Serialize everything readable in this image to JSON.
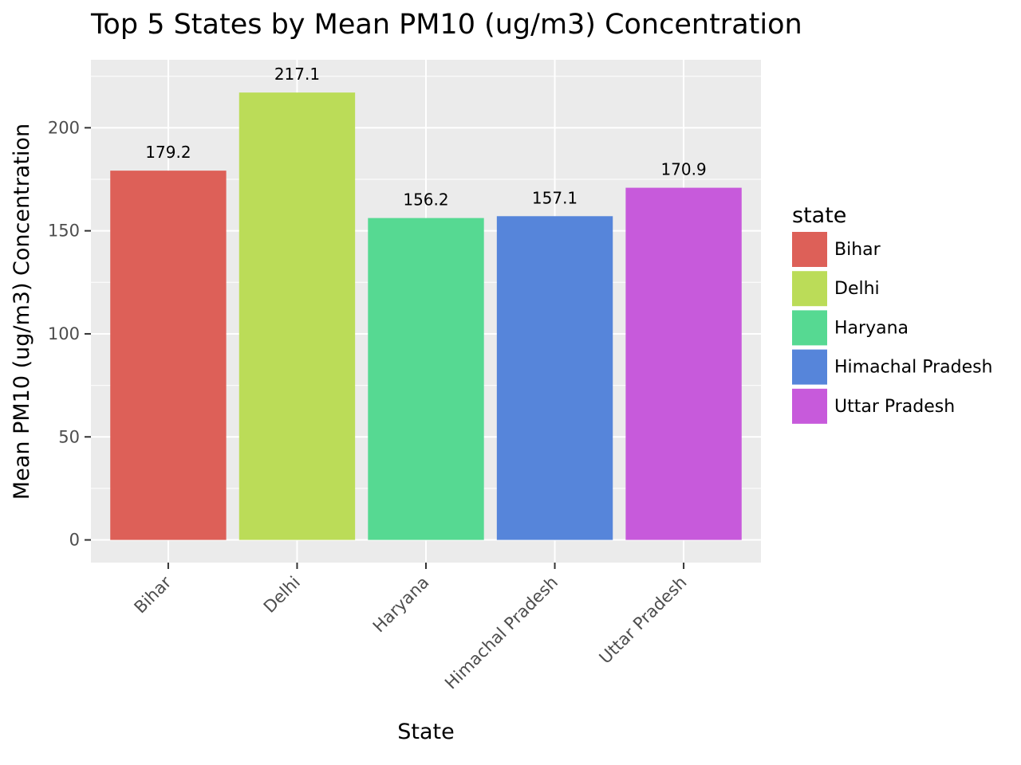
{
  "chart_data": {
    "type": "bar",
    "title": "Top 5 States by Mean PM10 (ug/m3) Concentration",
    "xlabel": "State",
    "ylabel": "Mean PM10 (ug/m3) Concentration",
    "categories": [
      "Bihar",
      "Delhi",
      "Haryana",
      "Himachal Pradesh",
      "Uttar Pradesh"
    ],
    "values": [
      179.2,
      217.1,
      156.2,
      157.1,
      170.9
    ],
    "data_labels": [
      "179.2",
      "217.1",
      "156.2",
      "157.1",
      "170.9"
    ],
    "colors": [
      "#dd6058",
      "#bbdc58",
      "#56d992",
      "#5685da",
      "#c75adb"
    ],
    "ylim": [
      -11,
      233
    ],
    "y_ticks": [
      0,
      50,
      100,
      150,
      200
    ],
    "y_tick_labels": [
      "0",
      "50",
      "100",
      "150",
      "200"
    ],
    "grid": true,
    "panel_background": "#ebebeb",
    "grid_color": "#ffffff",
    "legend": {
      "title": "state",
      "placement": "right",
      "entries": [
        "Bihar",
        "Delhi",
        "Haryana",
        "Himachal Pradesh",
        "Uttar Pradesh"
      ]
    }
  }
}
